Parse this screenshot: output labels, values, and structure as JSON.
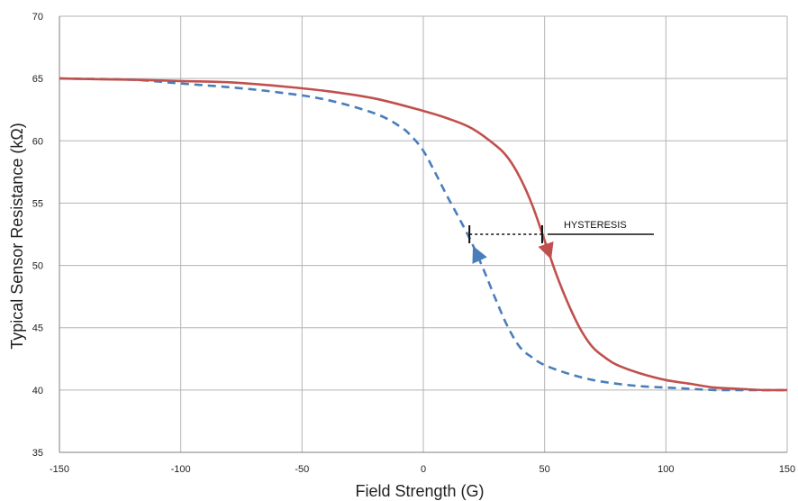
{
  "chart_data": {
    "type": "line",
    "title": "",
    "xlabel": "Field Strength (G)",
    "ylabel": "Typical Sensor Resistance (kΩ)",
    "xlim": [
      -150,
      150
    ],
    "ylim": [
      35,
      70
    ],
    "xticks": [
      -150,
      -100,
      -50,
      0,
      50,
      100,
      150
    ],
    "yticks": [
      35,
      40,
      45,
      50,
      55,
      60,
      65,
      70
    ],
    "grid": true,
    "legend": "none",
    "series": [
      {
        "color": "#c0504d",
        "style": "solid",
        "x": [
          -150,
          -120,
          -100,
          -80,
          -60,
          -40,
          -20,
          0,
          10,
          20,
          30,
          35,
          40,
          45,
          50,
          55,
          60,
          65,
          70,
          75,
          80,
          90,
          100,
          110,
          120,
          130,
          140,
          150
        ],
        "y": [
          65.0,
          64.9,
          64.8,
          64.7,
          64.4,
          64.0,
          63.4,
          62.4,
          61.8,
          61.0,
          59.6,
          58.6,
          57.0,
          54.8,
          52.0,
          49.2,
          46.8,
          44.8,
          43.4,
          42.6,
          42.0,
          41.3,
          40.8,
          40.5,
          40.2,
          40.1,
          40.0,
          40.0
        ]
      },
      {
        "color": "#4a7ebb",
        "style": "dashed",
        "x": [
          -150,
          -120,
          -100,
          -80,
          -60,
          -40,
          -20,
          -10,
          -5,
          0,
          5,
          10,
          15,
          20,
          25,
          30,
          35,
          40,
          45,
          50,
          60,
          70,
          80,
          90,
          100,
          110,
          120,
          130,
          140,
          150
        ],
        "y": [
          65.0,
          64.9,
          64.6,
          64.3,
          63.9,
          63.3,
          62.2,
          61.2,
          60.4,
          59.2,
          57.4,
          55.5,
          53.7,
          51.8,
          49.6,
          47.2,
          45.0,
          43.4,
          42.6,
          42.0,
          41.3,
          40.8,
          40.5,
          40.3,
          40.2,
          40.1,
          40.0,
          40.0,
          40.0,
          40.0
        ]
      }
    ],
    "annotations": [
      {
        "text": "HYSTERESIS",
        "x_from": 19,
        "x_to": 49,
        "y": 52.5
      }
    ]
  }
}
